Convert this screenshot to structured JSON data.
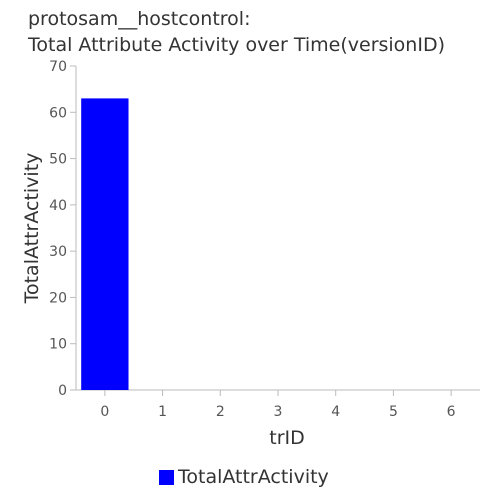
{
  "chart_data": {
    "type": "bar",
    "title_line1": "protosam__hostcontrol:",
    "title_line2": "Total Attribute Activity over Time(versionID)",
    "xlabel": "trID",
    "ylabel": "TotalAttrActivity",
    "categories": [
      "0",
      "1",
      "2",
      "3",
      "4",
      "5",
      "6"
    ],
    "series": [
      {
        "name": "TotalAttrActivity",
        "color": "#0000ff",
        "values": [
          63,
          null,
          null,
          null,
          null,
          null,
          null
        ]
      }
    ],
    "ylim": [
      0,
      70
    ],
    "yticks": [
      0,
      10,
      20,
      30,
      40,
      50,
      60,
      70
    ],
    "grid": false,
    "legend_position": "bottom"
  }
}
